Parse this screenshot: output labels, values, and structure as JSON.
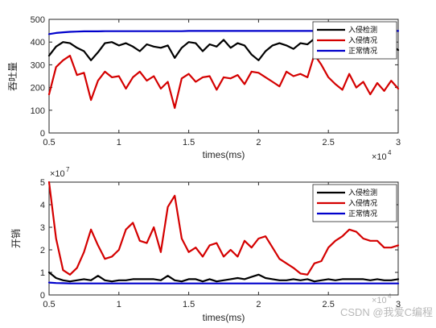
{
  "chart_data": [
    {
      "type": "line",
      "xlabel": "times(ms)",
      "ylabel": "吞吐量",
      "x_multiplier": "×10",
      "x_exponent": "4",
      "xlim": [
        0.5,
        3
      ],
      "ylim": [
        0,
        500
      ],
      "xticks": [
        "0.5",
        "1",
        "1.5",
        "2",
        "2.5",
        "3"
      ],
      "yticks": [
        "0",
        "100",
        "200",
        "300",
        "400",
        "500"
      ],
      "legend_position": "top-right",
      "grid": false,
      "x": [
        0.5,
        0.55,
        0.6,
        0.65,
        0.7,
        0.75,
        0.8,
        0.85,
        0.9,
        0.95,
        1.0,
        1.05,
        1.1,
        1.15,
        1.2,
        1.25,
        1.3,
        1.35,
        1.4,
        1.45,
        1.5,
        1.55,
        1.6,
        1.65,
        1.7,
        1.75,
        1.8,
        1.85,
        1.9,
        1.95,
        2.0,
        2.05,
        2.1,
        2.15,
        2.2,
        2.25,
        2.3,
        2.35,
        2.4,
        2.45,
        2.5,
        2.55,
        2.6,
        2.65,
        2.7,
        2.75,
        2.8,
        2.85,
        2.9,
        2.95,
        3.0
      ],
      "series": [
        {
          "name": "入侵检测",
          "color": "#000000",
          "values": [
            340,
            380,
            400,
            395,
            375,
            360,
            320,
            355,
            395,
            400,
            385,
            395,
            380,
            360,
            390,
            380,
            375,
            385,
            330,
            375,
            400,
            395,
            360,
            390,
            380,
            410,
            375,
            395,
            385,
            345,
            320,
            360,
            385,
            395,
            385,
            370,
            395,
            390,
            415,
            385,
            355,
            390,
            395,
            380,
            385,
            360,
            395,
            390,
            405,
            385,
            365
          ]
        },
        {
          "name": "入侵情况",
          "color": "#d40000",
          "values": [
            170,
            290,
            320,
            340,
            255,
            265,
            145,
            230,
            270,
            245,
            250,
            195,
            245,
            270,
            230,
            250,
            195,
            225,
            110,
            240,
            260,
            225,
            245,
            250,
            190,
            245,
            240,
            255,
            215,
            270,
            265,
            245,
            225,
            205,
            270,
            250,
            260,
            245,
            345,
            300,
            245,
            215,
            190,
            260,
            200,
            225,
            170,
            220,
            185,
            230,
            195
          ]
        },
        {
          "name": "正常情况",
          "color": "#0000cc",
          "values": [
            435,
            440,
            443,
            445,
            446,
            447,
            447,
            447,
            448,
            448,
            448,
            448,
            448,
            448,
            448,
            448,
            448,
            448,
            448,
            448,
            449,
            449,
            449,
            449,
            449,
            449,
            449,
            449,
            449,
            449,
            449,
            449,
            449,
            449,
            449,
            449,
            449,
            449,
            449,
            449,
            449,
            449,
            449,
            449,
            449,
            449,
            449,
            449,
            449,
            449,
            449
          ]
        }
      ]
    },
    {
      "type": "line",
      "xlabel": "times(ms)",
      "ylabel": "开销",
      "y_multiplier": "×10",
      "y_exponent": "7",
      "x_multiplier": "×10",
      "x_exponent": "4",
      "xlim": [
        0.5,
        3
      ],
      "ylim": [
        0,
        5
      ],
      "xticks": [
        "0.5",
        "1",
        "1.5",
        "2",
        "2.5",
        "3"
      ],
      "yticks": [
        "0",
        "1",
        "2",
        "3",
        "4",
        "5"
      ],
      "legend_position": "top-right",
      "grid": false,
      "x": [
        0.5,
        0.55,
        0.6,
        0.65,
        0.7,
        0.75,
        0.8,
        0.85,
        0.9,
        0.95,
        1.0,
        1.05,
        1.1,
        1.15,
        1.2,
        1.25,
        1.3,
        1.35,
        1.4,
        1.45,
        1.5,
        1.55,
        1.6,
        1.65,
        1.7,
        1.75,
        1.8,
        1.85,
        1.9,
        1.95,
        2.0,
        2.05,
        2.1,
        2.15,
        2.2,
        2.25,
        2.3,
        2.35,
        2.4,
        2.45,
        2.5,
        2.55,
        2.6,
        2.65,
        2.7,
        2.75,
        2.8,
        2.85,
        2.9,
        2.95,
        3.0
      ],
      "series": [
        {
          "name": "入侵检测",
          "color": "#000000",
          "values": [
            1.0,
            0.75,
            0.65,
            0.6,
            0.65,
            0.7,
            0.65,
            0.85,
            0.65,
            0.6,
            0.65,
            0.65,
            0.7,
            0.7,
            0.7,
            0.7,
            0.65,
            0.85,
            0.65,
            0.6,
            0.7,
            0.7,
            0.6,
            0.7,
            0.6,
            0.65,
            0.7,
            0.75,
            0.7,
            0.8,
            0.9,
            0.75,
            0.7,
            0.65,
            0.65,
            0.7,
            0.65,
            0.7,
            0.6,
            0.65,
            0.7,
            0.65,
            0.7,
            0.7,
            0.7,
            0.7,
            0.65,
            0.7,
            0.65,
            0.65,
            0.7
          ]
        },
        {
          "name": "入侵情况",
          "color": "#d40000",
          "values": [
            5.0,
            2.5,
            1.1,
            0.9,
            1.2,
            1.9,
            2.9,
            2.2,
            1.6,
            1.7,
            2.0,
            2.9,
            3.2,
            2.4,
            2.3,
            3.0,
            1.9,
            3.9,
            4.4,
            2.5,
            1.9,
            2.1,
            1.7,
            2.2,
            2.3,
            1.7,
            2.0,
            1.7,
            2.4,
            2.1,
            2.5,
            2.6,
            2.1,
            1.6,
            1.4,
            1.2,
            0.95,
            0.9,
            1.4,
            1.5,
            2.1,
            2.4,
            2.6,
            2.9,
            2.8,
            2.5,
            2.4,
            2.4,
            2.1,
            2.1,
            2.2
          ]
        },
        {
          "name": "正常情况",
          "color": "#0000cc",
          "values": [
            0.55,
            0.53,
            0.52,
            0.51,
            0.51,
            0.51,
            0.51,
            0.51,
            0.51,
            0.51,
            0.51,
            0.51,
            0.51,
            0.51,
            0.51,
            0.51,
            0.51,
            0.51,
            0.51,
            0.51,
            0.51,
            0.51,
            0.51,
            0.51,
            0.51,
            0.51,
            0.51,
            0.51,
            0.51,
            0.51,
            0.51,
            0.51,
            0.51,
            0.51,
            0.51,
            0.51,
            0.51,
            0.51,
            0.51,
            0.51,
            0.51,
            0.51,
            0.51,
            0.51,
            0.51,
            0.51,
            0.51,
            0.51,
            0.51,
            0.51,
            0.51
          ]
        }
      ]
    }
  ],
  "watermark": "CSDN @我爱C编程"
}
